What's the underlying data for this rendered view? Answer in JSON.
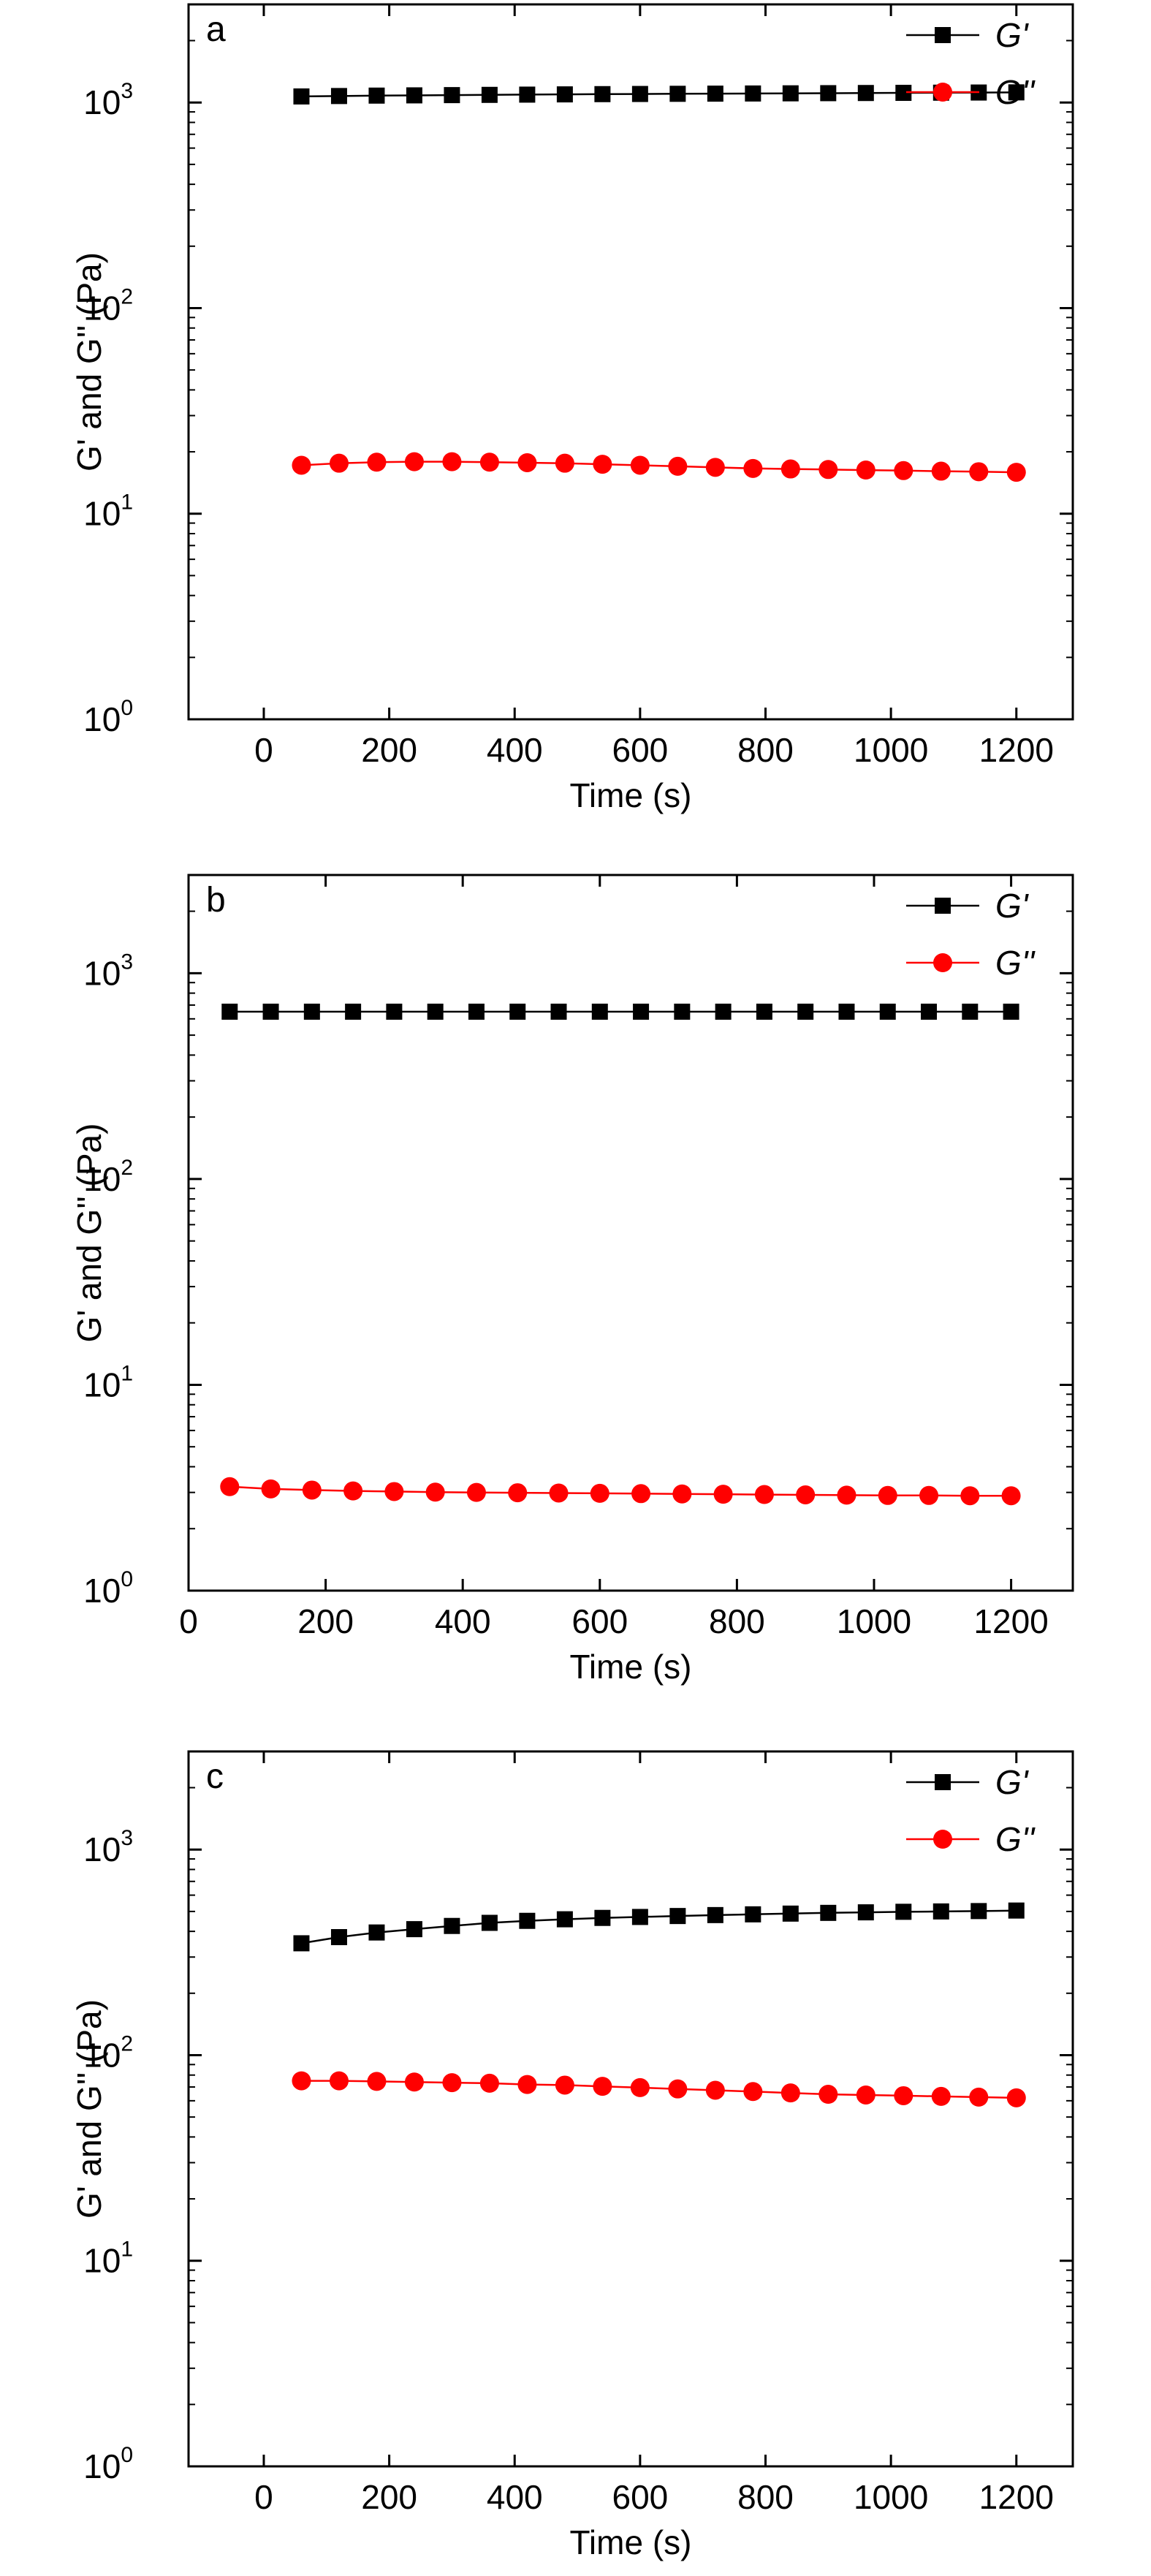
{
  "figure": {
    "panels": [
      "a",
      "b",
      "c"
    ]
  },
  "colors": {
    "series_g1": "#000000",
    "series_g2": "#ff0000",
    "axis": "#000000",
    "background": "#ffffff"
  },
  "chart_data": [
    {
      "type": "line",
      "panel_label": "a",
      "xlabel": "Time (s)",
      "ylabel": "G' and G'' (Pa)",
      "xlim": [
        -120,
        1290
      ],
      "ylim": [
        1,
        3000
      ],
      "y_scale": "log",
      "x_ticks": [
        0,
        200,
        400,
        600,
        800,
        1000,
        1200
      ],
      "y_ticks": [
        {
          "base": "10",
          "exp": "0",
          "value": 1
        },
        {
          "base": "10",
          "exp": "1",
          "value": 10
        },
        {
          "base": "10",
          "exp": "2",
          "value": 100
        },
        {
          "base": "10",
          "exp": "3",
          "value": 1000
        }
      ],
      "grid": false,
      "legend_position": "top-right",
      "x": [
        60,
        120,
        180,
        240,
        300,
        360,
        420,
        480,
        540,
        600,
        660,
        720,
        780,
        840,
        900,
        960,
        1020,
        1080,
        1140,
        1200
      ],
      "series": [
        {
          "name": "G'",
          "marker": "square",
          "color": "#000000",
          "values": [
            1070,
            1075,
            1080,
            1083,
            1086,
            1089,
            1092,
            1095,
            1098,
            1100,
            1102,
            1104,
            1106,
            1108,
            1110,
            1112,
            1114,
            1116,
            1118,
            1120
          ]
        },
        {
          "name": "G''",
          "marker": "circle",
          "color": "#ff0000",
          "values": [
            17.2,
            17.6,
            17.8,
            17.9,
            17.9,
            17.8,
            17.7,
            17.6,
            17.4,
            17.2,
            17.0,
            16.8,
            16.6,
            16.5,
            16.4,
            16.3,
            16.2,
            16.1,
            16.0,
            15.9
          ]
        }
      ]
    },
    {
      "type": "line",
      "panel_label": "b",
      "xlabel": "Time (s)",
      "ylabel": "G' and G'' (Pa)",
      "xlim": [
        0,
        1290
      ],
      "ylim": [
        1,
        3000
      ],
      "y_scale": "log",
      "x_ticks": [
        0,
        200,
        400,
        600,
        800,
        1000,
        1200
      ],
      "y_ticks": [
        {
          "base": "10",
          "exp": "0",
          "value": 1
        },
        {
          "base": "10",
          "exp": "1",
          "value": 10
        },
        {
          "base": "10",
          "exp": "2",
          "value": 100
        },
        {
          "base": "10",
          "exp": "3",
          "value": 1000
        }
      ],
      "grid": false,
      "legend_position": "top-right",
      "x": [
        60,
        120,
        180,
        240,
        300,
        360,
        420,
        480,
        540,
        600,
        660,
        720,
        780,
        840,
        900,
        960,
        1020,
        1080,
        1140,
        1200
      ],
      "series": [
        {
          "name": "G'",
          "marker": "square",
          "color": "#000000",
          "values": [
            650,
            650,
            650,
            650,
            650,
            650,
            650,
            650,
            650,
            650,
            650,
            650,
            650,
            650,
            650,
            650,
            650,
            650,
            650,
            650
          ]
        },
        {
          "name": "G''",
          "marker": "circle",
          "color": "#ff0000",
          "values": [
            3.2,
            3.12,
            3.08,
            3.05,
            3.03,
            3.01,
            3.0,
            2.99,
            2.98,
            2.97,
            2.96,
            2.95,
            2.94,
            2.93,
            2.92,
            2.91,
            2.9,
            2.9,
            2.89,
            2.89
          ]
        }
      ]
    },
    {
      "type": "line",
      "panel_label": "c",
      "xlabel": "Time (s)",
      "ylabel": "G' and G'' (Pa)",
      "xlim": [
        -120,
        1290
      ],
      "ylim": [
        1,
        3000
      ],
      "y_scale": "log",
      "x_ticks": [
        0,
        200,
        400,
        600,
        800,
        1000,
        1200
      ],
      "y_ticks": [
        {
          "base": "10",
          "exp": "0",
          "value": 1
        },
        {
          "base": "10",
          "exp": "1",
          "value": 10
        },
        {
          "base": "10",
          "exp": "2",
          "value": 100
        },
        {
          "base": "10",
          "exp": "3",
          "value": 1000
        }
      ],
      "grid": false,
      "legend_position": "top-right",
      "x": [
        60,
        120,
        180,
        240,
        300,
        360,
        420,
        480,
        540,
        600,
        660,
        720,
        780,
        840,
        900,
        960,
        1020,
        1080,
        1140,
        1200
      ],
      "series": [
        {
          "name": "G'",
          "marker": "square",
          "color": "#000000",
          "values": [
            350,
            375,
            395,
            410,
            425,
            440,
            450,
            458,
            465,
            470,
            475,
            480,
            484,
            488,
            492,
            495,
            498,
            500,
            502,
            505
          ]
        },
        {
          "name": "G''",
          "marker": "circle",
          "color": "#ff0000",
          "values": [
            75,
            75,
            74.5,
            74,
            73.5,
            73,
            72,
            71.5,
            70.5,
            69.5,
            68.5,
            67.5,
            66.5,
            65.5,
            64.5,
            64,
            63.5,
            63,
            62.5,
            62
          ]
        }
      ]
    }
  ]
}
